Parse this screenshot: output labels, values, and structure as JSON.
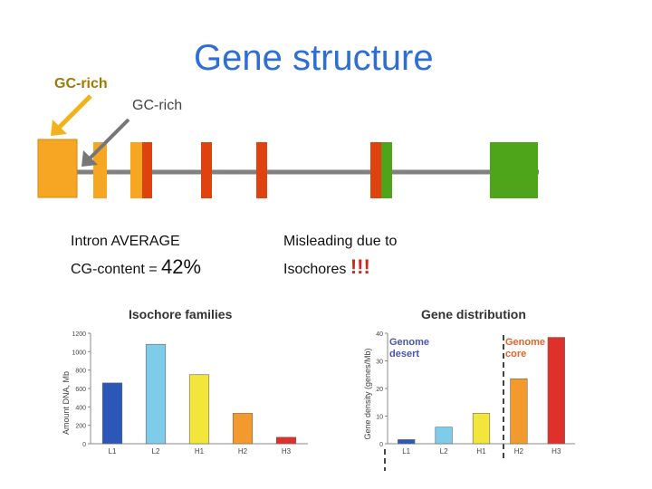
{
  "title": "Gene structure",
  "labels": {
    "gc_rich_left": "GC-rich",
    "gc_rich_mid": "GC-rich"
  },
  "notes": {
    "intron_line1": "Intron AVERAGE",
    "intron_line2_prefix": "CG-content = ",
    "intron_value": "42%",
    "misleading_line1": "Misleading due to",
    "misleading_line2_prefix": "Isochores ",
    "misleading_emphasis": "!!!"
  },
  "colors": {
    "title": "#2f6fd4",
    "exon_orange": "#f6a623",
    "exon_red": "#e0420f",
    "exon_green": "#4ea51a",
    "intron_line": "#808080",
    "arrow_yellow": "#f2b21c",
    "arrow_gray": "#777777"
  },
  "chart_data": [
    {
      "type": "bar",
      "title": "Isochore families",
      "ylabel": "Amount DNA, Mb",
      "categories": [
        "L1",
        "L2",
        "H1",
        "H2",
        "H3"
      ],
      "values": [
        660,
        1080,
        750,
        330,
        70
      ],
      "colors": [
        "#2b58b8",
        "#7fcbea",
        "#f2e53c",
        "#f29a2e",
        "#e0302a"
      ],
      "ylim": [
        0,
        1200
      ],
      "yticks": [
        "0",
        "200",
        "400",
        "600",
        "800",
        "1000",
        "1200"
      ]
    },
    {
      "type": "bar",
      "title": "Gene distribution",
      "ylabel": "Gene density (genes/Mb)",
      "categories": [
        "L1",
        "L2",
        "H1",
        "H2",
        "H3"
      ],
      "values": [
        1.5,
        6,
        11,
        23.5,
        38.5
      ],
      "colors": [
        "#2b58b8",
        "#7fcbea",
        "#f2e53c",
        "#f29a2e",
        "#e0302a"
      ],
      "ylim": [
        0,
        40
      ],
      "yticks": [
        "0",
        "10",
        "20",
        "30",
        "40"
      ],
      "annotations": {
        "desert": [
          "Genome",
          "desert"
        ],
        "core": [
          "Genome",
          "core"
        ]
      }
    }
  ]
}
